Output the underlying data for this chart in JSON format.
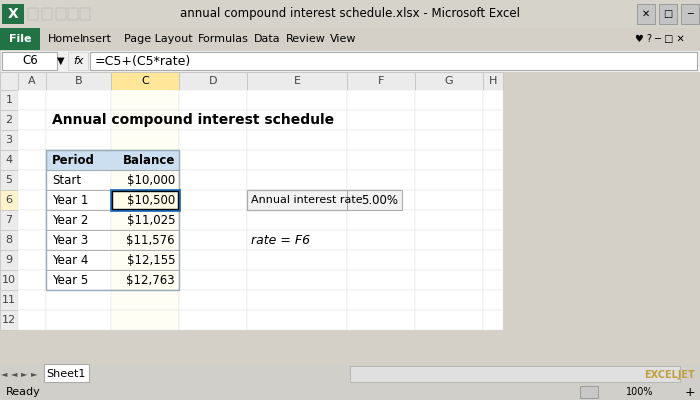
{
  "title_bar_text": "annual compound interest schedule.xlsx - Microsoft Excel",
  "cell_ref": "C6",
  "formula": "=C5+(C5*rate)",
  "sheet_title": "Annual compound interest schedule",
  "col_headers": [
    "Period",
    "Balance"
  ],
  "rows": [
    [
      "Start",
      "$10,000"
    ],
    [
      "Year 1",
      "$10,500"
    ],
    [
      "Year 2",
      "$11,025"
    ],
    [
      "Year 3",
      "$11,576"
    ],
    [
      "Year 4",
      "$12,155"
    ],
    [
      "Year 5",
      "$12,763"
    ]
  ],
  "rate_label": "Annual interest rate",
  "rate_value": "5.00%",
  "rate_note": "rate = F6",
  "menu_items": [
    "File",
    "Home",
    "Insert",
    "Page Layout",
    "Formulas",
    "Data",
    "Review",
    "View"
  ],
  "col_letters": [
    "A",
    "B",
    "C",
    "D",
    "E",
    "F",
    "G",
    "H"
  ],
  "row_numbers": [
    "1",
    "2",
    "3",
    "4",
    "5",
    "6",
    "7",
    "8",
    "9",
    "10",
    "11",
    "12"
  ],
  "bg_color": "#FFFFFF",
  "titlebar_bg": "#D4D0C8",
  "ribbon_bg": "#F0F0F0",
  "header_row_bg": "#D6E4F0",
  "selected_col_bg": "#FFE699",
  "selected_cell_border": "#000000",
  "row6_bg": "#FFF2CC",
  "table_border": "#AAAAAA",
  "green_tab": "#217346",
  "status_bar_bg": "#D4D0C8"
}
